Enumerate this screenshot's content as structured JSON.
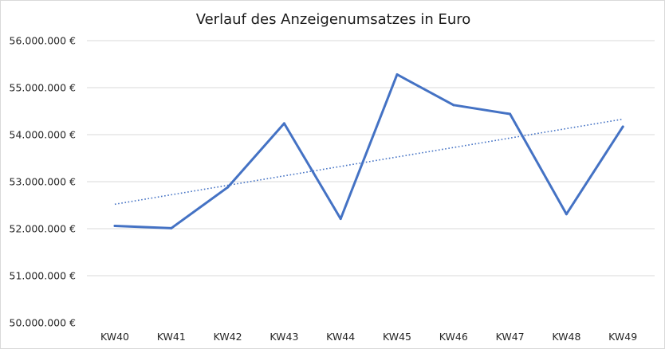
{
  "chart_data": {
    "type": "line",
    "title": "Verlauf des Anzeigenumsatzes in Euro",
    "xlabel": "",
    "ylabel": "",
    "categories": [
      "KW40",
      "KW41",
      "KW42",
      "KW43",
      "KW44",
      "KW45",
      "KW46",
      "KW47",
      "KW48",
      "KW49"
    ],
    "series": [
      {
        "values": [
          52060000,
          52010000,
          52880000,
          54240000,
          52210000,
          55280000,
          54630000,
          54440000,
          52310000,
          54170000
        ],
        "color": "#4472c4"
      }
    ],
    "trendline": {
      "type": "linear",
      "start": 52520000,
      "end": 54330000,
      "color": "#4472c4",
      "style": "dotted"
    },
    "ylim": [
      50000000,
      56000000
    ],
    "y_ticks": [
      50000000,
      51000000,
      52000000,
      53000000,
      54000000,
      55000000,
      56000000
    ],
    "y_tick_labels": [
      "50.000.000 €",
      "51.000.000 €",
      "52.000.000 €",
      "53.000.000 €",
      "54.000.000 €",
      "55.000.000 €",
      "56.000.000 €"
    ],
    "grid": true,
    "legend": "none"
  }
}
